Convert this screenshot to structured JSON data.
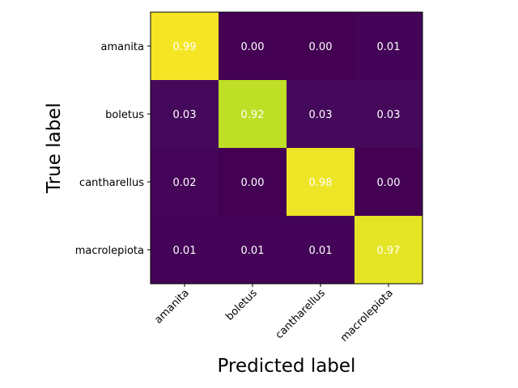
{
  "chart_data": {
    "type": "heatmap",
    "title": "",
    "xlabel": "Predicted label",
    "ylabel": "True label",
    "x_categories": [
      "amanita",
      "boletus",
      "cantharellus",
      "macrolepiota"
    ],
    "y_categories": [
      "amanita",
      "boletus",
      "cantharellus",
      "macrolepiota"
    ],
    "values": [
      [
        0.99,
        0.0,
        0.0,
        0.01
      ],
      [
        0.03,
        0.92,
        0.03,
        0.03
      ],
      [
        0.02,
        0.0,
        0.98,
        0.0
      ],
      [
        0.01,
        0.01,
        0.01,
        0.97
      ]
    ],
    "value_labels": [
      [
        "0.99",
        "0.00",
        "0.00",
        "0.01"
      ],
      [
        "0.03",
        "0.92",
        "0.03",
        "0.03"
      ],
      [
        "0.02",
        "0.00",
        "0.98",
        "0.00"
      ],
      [
        "0.01",
        "0.01",
        "0.01",
        "0.97"
      ]
    ],
    "colormap": "viridis",
    "value_range": [
      0,
      1
    ],
    "annotation_color": "#ffffff"
  }
}
